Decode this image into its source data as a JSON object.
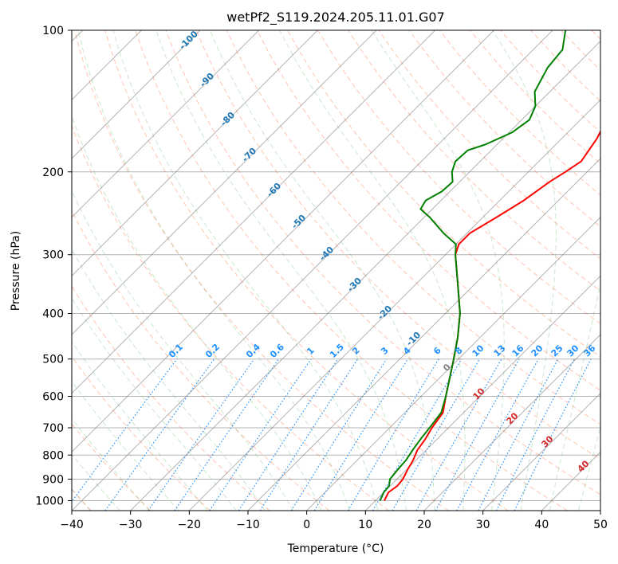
{
  "chart_data": {
    "type": "line",
    "title": "wetPf2_S119.2024.205.11.01.G07",
    "xlabel": "Temperature (°C)",
    "ylabel": "Pressure (hPa)",
    "xlim": [
      -40,
      50
    ],
    "ylim": [
      1050,
      100
    ],
    "y_scale": "log",
    "x_ticks": [
      -40,
      -30,
      -20,
      -10,
      0,
      10,
      20,
      30,
      40,
      50
    ],
    "y_ticks": [
      100,
      200,
      300,
      400,
      500,
      600,
      700,
      800,
      900,
      1000
    ],
    "x_tick_labels": [
      "−40",
      "−30",
      "−20",
      "−10",
      "0",
      "10",
      "20",
      "30",
      "40",
      "50"
    ],
    "y_tick_labels": [
      "100",
      "200",
      "300",
      "400",
      "500",
      "600",
      "700",
      "800",
      "900",
      "1000"
    ],
    "grid": true,
    "skew_degrees": 45,
    "series": [
      {
        "color": "#ff0000",
        "points": [
          [
            1000,
            11.5
          ],
          [
            960,
            10.8
          ],
          [
            930,
            11.2
          ],
          [
            900,
            11.0
          ],
          [
            860,
            10.2
          ],
          [
            820,
            9.5
          ],
          [
            780,
            8.5
          ],
          [
            740,
            8.0
          ],
          [
            700,
            7.2
          ],
          [
            650,
            6.5
          ],
          [
            600,
            4.2
          ],
          [
            550,
            1.8
          ],
          [
            500,
            -0.8
          ],
          [
            450,
            -3.8
          ],
          [
            400,
            -7.5
          ],
          [
            350,
            -12.5
          ],
          [
            300,
            -18.3
          ],
          [
            285,
            -19.5
          ],
          [
            270,
            -19.5
          ],
          [
            250,
            -17.7
          ],
          [
            230,
            -15.9
          ],
          [
            210,
            -14.7
          ],
          [
            200,
            -13.7
          ],
          [
            190,
            -12.8
          ],
          [
            170,
            -14.0
          ],
          [
            160,
            -15.0
          ],
          [
            150,
            -15.3
          ],
          [
            140,
            -14.6
          ],
          [
            130,
            -15.0
          ],
          [
            120,
            -15.8
          ],
          [
            110,
            -15.8
          ],
          [
            100,
            -17.3
          ]
        ]
      },
      {
        "color": "#008000",
        "points": [
          [
            1000,
            10.8
          ],
          [
            960,
            10.0
          ],
          [
            930,
            9.8
          ],
          [
            900,
            8.8
          ],
          [
            860,
            8.5
          ],
          [
            820,
            8.3
          ],
          [
            780,
            7.7
          ],
          [
            740,
            7.2
          ],
          [
            700,
            6.8
          ],
          [
            650,
            6.2
          ],
          [
            600,
            4.2
          ],
          [
            550,
            1.8
          ],
          [
            500,
            -0.8
          ],
          [
            450,
            -3.8
          ],
          [
            400,
            -7.5
          ],
          [
            350,
            -12.5
          ],
          [
            300,
            -18.3
          ],
          [
            285,
            -20.0
          ],
          [
            270,
            -24.0
          ],
          [
            250,
            -29.0
          ],
          [
            240,
            -32.0
          ],
          [
            230,
            -32.6
          ],
          [
            220,
            -31.4
          ],
          [
            210,
            -31.2
          ],
          [
            200,
            -33.0
          ],
          [
            190,
            -34.2
          ],
          [
            180,
            -34.0
          ],
          [
            175,
            -32.0
          ],
          [
            165,
            -29.5
          ],
          [
            155,
            -28.7
          ],
          [
            145,
            -30.0
          ],
          [
            135,
            -32.6
          ],
          [
            120,
            -34.5
          ],
          [
            110,
            -35.0
          ],
          [
            100,
            -37.8
          ]
        ]
      }
    ],
    "dry_adiabat_labels": [
      "-100",
      "-90",
      "-80",
      "-70",
      "-60",
      "-50",
      "-40",
      "-30",
      "-20",
      "-10",
      "0"
    ],
    "mixing_ratio_labels": [
      "0.1",
      "0.2",
      "0.4",
      "0.6",
      "1",
      "1.5",
      "2",
      "3",
      "4",
      "6",
      "8",
      "10",
      "13",
      "16",
      "20",
      "25",
      "30",
      "36"
    ],
    "moist_adiabat_labels": [
      "10",
      "20",
      "30",
      "40"
    ]
  }
}
